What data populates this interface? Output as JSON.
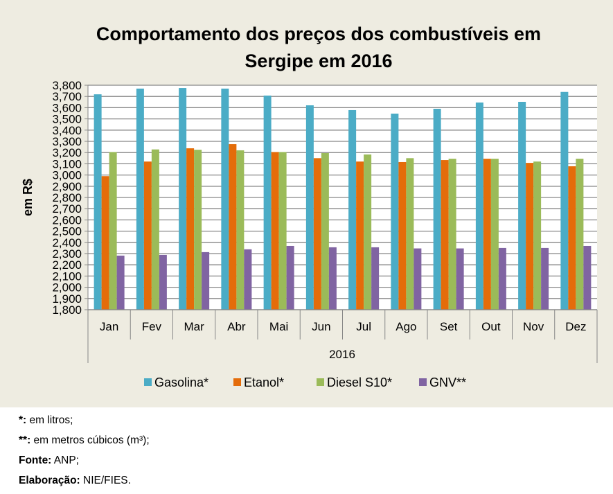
{
  "chart_data": {
    "type": "bar",
    "title": "Comportamento dos preços dos combustíveis em Sergipe em 2016",
    "title_lines": [
      "Comportamento dos preços dos combustíveis em",
      "Sergipe em 2016"
    ],
    "xlabel": "2016",
    "ylabel": "em R$",
    "ylim": [
      1800,
      3800
    ],
    "ytick_step": 100,
    "yticks": [
      "1,800",
      "1,900",
      "2,000",
      "2,100",
      "2,200",
      "2,300",
      "2,400",
      "2,500",
      "2,600",
      "2,700",
      "2,800",
      "2,900",
      "3,000",
      "3,100",
      "3,200",
      "3,300",
      "3,400",
      "3,500",
      "3,600",
      "3,700",
      "3,800"
    ],
    "grid": true,
    "legend_position": "bottom",
    "categories": [
      "Jan",
      "Fev",
      "Mar",
      "Abr",
      "Mai",
      "Jun",
      "Jul",
      "Ago",
      "Set",
      "Out",
      "Nov",
      "Dez"
    ],
    "group_label": "2016",
    "series": [
      {
        "name": "Gasolina*",
        "color": "#4bacc6",
        "values": [
          3.719,
          3.77,
          3.775,
          3.77,
          3.708,
          3.621,
          3.578,
          3.547,
          3.59,
          3.646,
          3.652,
          3.74
        ]
      },
      {
        "name": "Etanol*",
        "color": "#e46c0a",
        "values": [
          2.99,
          3.12,
          3.238,
          3.275,
          3.205,
          3.15,
          3.12,
          3.115,
          3.133,
          3.145,
          3.108,
          3.078
        ]
      },
      {
        "name": "Diesel S10*",
        "color": "#9bbb59",
        "values": [
          3.205,
          3.228,
          3.225,
          3.22,
          3.205,
          3.195,
          3.183,
          3.15,
          3.145,
          3.145,
          3.12,
          3.145
        ]
      },
      {
        "name": "GNV**",
        "color": "#8064a2",
        "values": [
          2.282,
          2.288,
          2.313,
          2.338,
          2.368,
          2.356,
          2.356,
          2.346,
          2.346,
          2.35,
          2.35,
          2.368
        ]
      }
    ],
    "value_note": "Values in R$; axis ticks shown as 1,800–3,800 (comma as decimal separator, i.e. R$ 1.800–3.800)"
  },
  "notes": [
    {
      "label": "*:",
      "text": " em litros;"
    },
    {
      "label": "**:",
      "text": " em metros cúbicos (m³);"
    },
    {
      "label": "Fonte:",
      "text": " ANP;"
    },
    {
      "label": "Elaboração:",
      "text": " NIE/FIES."
    }
  ]
}
